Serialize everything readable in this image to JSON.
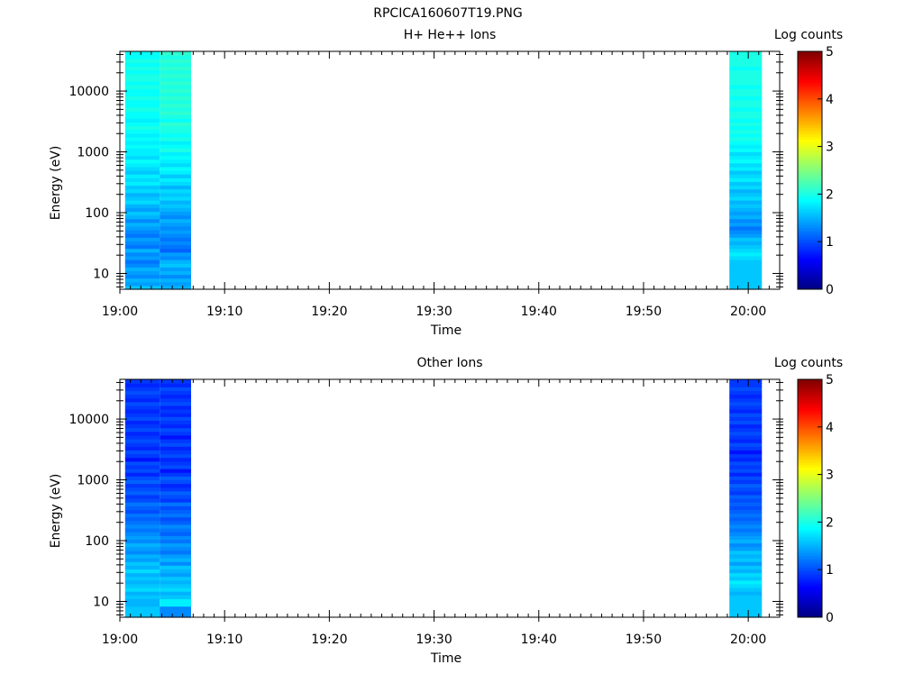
{
  "figure": {
    "title": "RPCICA160607T19.PNG"
  },
  "chart_data": [
    {
      "type": "heatmap",
      "title": "H+ He++ Ions",
      "xlabel": "Time",
      "ylabel": "Energy (eV)",
      "xlim": [
        "19:00",
        "20:03"
      ],
      "xticks": [
        "19:00",
        "19:10",
        "19:20",
        "19:30",
        "19:40",
        "19:50",
        "20:00"
      ],
      "ylim": [
        5.5,
        45000
      ],
      "yscale": "log",
      "yticks": [
        "10",
        "100",
        "1000",
        "10000"
      ],
      "colorbar": {
        "label": "Log counts",
        "range": [
          0,
          5
        ],
        "ticks": [
          "0",
          "1",
          "2",
          "3",
          "4",
          "5"
        ]
      },
      "columns": [
        {
          "t_start": "19:00.5",
          "t_end": "19:03.8",
          "log_counts": [
            1.6,
            1.4,
            1.5,
            1.3,
            1.4,
            1.5,
            1.3,
            1.2,
            1.4,
            1.3,
            1.5,
            1.2,
            1.3,
            1.4,
            1.2,
            1.3,
            1.4,
            1.5,
            1.3,
            1.5,
            1.6,
            1.4,
            1.5,
            1.7,
            1.6,
            1.5,
            1.7,
            1.6,
            1.8,
            1.7,
            1.8,
            1.6,
            1.7,
            1.8,
            1.9,
            1.7,
            1.8,
            1.8,
            1.9,
            1.8,
            1.9,
            1.8,
            1.9,
            2.0,
            1.9,
            1.8,
            1.9,
            1.9,
            2.0,
            1.9,
            1.9,
            2.0,
            1.9,
            1.9,
            2.0,
            1.9,
            2.0,
            2.0,
            1.9,
            2.0,
            1.9,
            2.0,
            1.9,
            1.9
          ]
        },
        {
          "t_start": "19:03.8",
          "t_end": "19:06.8",
          "log_counts": [
            1.5,
            1.4,
            1.5,
            1.3,
            1.5,
            1.4,
            1.6,
            1.5,
            1.3,
            1.4,
            1.1,
            1.2,
            1.3,
            1.2,
            1.3,
            1.4,
            1.3,
            1.4,
            1.5,
            1.3,
            1.4,
            1.5,
            1.6,
            1.5,
            1.7,
            1.6,
            1.7,
            1.5,
            1.7,
            1.8,
            1.6,
            1.8,
            1.9,
            1.7,
            1.8,
            1.9,
            1.8,
            2.0,
            1.9,
            1.8,
            2.0,
            1.9,
            2.0,
            2.0,
            2.1,
            1.9,
            2.0,
            2.1,
            2.0,
            2.1,
            2.0,
            2.1,
            2.0,
            2.1,
            2.0,
            2.1,
            2.0,
            2.1,
            2.0,
            2.1,
            2.0,
            2.1,
            2.0,
            2.1
          ]
        },
        {
          "t_start": "19:58.2",
          "t_end": "20:01.3",
          "log_counts": [
            1.6,
            1.6,
            1.6,
            1.6,
            1.6,
            1.6,
            1.6,
            1.6,
            1.7,
            1.8,
            1.7,
            1.6,
            1.5,
            1.6,
            1.4,
            1.3,
            1.2,
            1.4,
            1.3,
            1.5,
            1.4,
            1.5,
            1.6,
            1.5,
            1.7,
            1.6,
            1.5,
            1.7,
            1.6,
            1.8,
            1.7,
            1.6,
            1.8,
            1.7,
            1.9,
            1.8,
            1.7,
            1.9,
            1.8,
            1.9,
            2.0,
            1.9,
            2.0,
            1.9,
            2.0,
            1.9,
            2.0,
            2.0,
            1.9,
            2.0,
            2.0,
            1.9,
            2.0,
            2.0,
            1.9,
            2.0,
            2.0,
            2.0,
            2.0,
            1.9,
            2.0,
            2.0,
            2.0,
            2.0
          ]
        }
      ]
    },
    {
      "type": "heatmap",
      "title": "Other Ions",
      "xlabel": "Time",
      "ylabel": "Energy (eV)",
      "xlim": [
        "19:00",
        "20:03"
      ],
      "xticks": [
        "19:00",
        "19:10",
        "19:20",
        "19:30",
        "19:40",
        "19:50",
        "20:00"
      ],
      "ylim": [
        5.5,
        45000
      ],
      "yscale": "log",
      "yticks": [
        "10",
        "100",
        "1000",
        "10000"
      ],
      "colorbar": {
        "label": "Log counts",
        "range": [
          0,
          5
        ],
        "ticks": [
          "0",
          "1",
          "2",
          "3",
          "4",
          "5"
        ]
      },
      "columns": [
        {
          "t_start": "19:00.5",
          "t_end": "19:03.8",
          "log_counts": [
            1.6,
            1.6,
            1.6,
            1.5,
            1.5,
            1.6,
            1.5,
            1.7,
            1.6,
            1.5,
            1.6,
            1.5,
            1.7,
            1.5,
            1.6,
            1.4,
            1.5,
            1.3,
            1.4,
            1.5,
            1.3,
            1.4,
            1.3,
            1.2,
            1.3,
            1.2,
            1.1,
            1.2,
            1.0,
            1.1,
            1.2,
            1.0,
            0.9,
            1.1,
            1.0,
            0.9,
            1.1,
            1.0,
            0.8,
            1.0,
            0.9,
            1.0,
            0.7,
            0.9,
            1.0,
            0.8,
            0.9,
            1.0,
            0.9,
            0.8,
            1.0,
            0.9,
            0.8,
            1.0,
            0.9,
            0.8,
            0.9,
            1.0,
            0.8,
            0.9,
            1.0,
            0.9,
            0.8,
            0.9
          ]
        },
        {
          "t_start": "19:03.8",
          "t_end": "19:06.8",
          "log_counts": [
            1.3,
            1.3,
            1.3,
            1.8,
            1.8,
            1.6,
            1.5,
            1.7,
            1.6,
            1.5,
            1.6,
            1.4,
            1.5,
            1.6,
            1.3,
            1.5,
            1.4,
            1.2,
            1.3,
            1.4,
            1.2,
            1.3,
            1.1,
            1.2,
            1.3,
            1.1,
            1.0,
            1.2,
            1.1,
            1.0,
            1.2,
            0.9,
            1.0,
            1.1,
            0.9,
            0.8,
            1.0,
            1.1,
            0.9,
            0.7,
            1.0,
            0.9,
            0.8,
            1.0,
            0.9,
            0.8,
            1.0,
            0.9,
            0.7,
            0.9,
            1.0,
            0.8,
            0.9,
            1.0,
            0.8,
            0.9,
            0.8,
            1.0,
            0.9,
            0.8,
            0.9,
            1.0,
            0.8,
            0.9
          ]
        },
        {
          "t_start": "19:58.2",
          "t_end": "20:01.3",
          "log_counts": [
            1.6,
            1.6,
            1.6,
            1.6,
            1.6,
            1.6,
            1.5,
            1.6,
            1.7,
            1.8,
            1.6,
            1.7,
            1.5,
            1.6,
            1.4,
            1.6,
            1.5,
            1.6,
            1.4,
            1.3,
            1.5,
            1.4,
            1.3,
            1.2,
            1.3,
            1.2,
            1.1,
            1.2,
            1.1,
            1.0,
            1.1,
            1.0,
            1.1,
            0.9,
            1.0,
            1.1,
            0.9,
            1.0,
            0.8,
            1.0,
            0.9,
            1.0,
            0.8,
            0.9,
            0.7,
            0.9,
            1.0,
            0.8,
            0.9,
            1.0,
            0.9,
            0.8,
            1.0,
            0.9,
            1.0,
            0.8,
            0.9,
            1.0,
            0.9,
            0.8,
            0.9,
            1.0,
            0.9,
            0.9
          ]
        }
      ]
    }
  ]
}
